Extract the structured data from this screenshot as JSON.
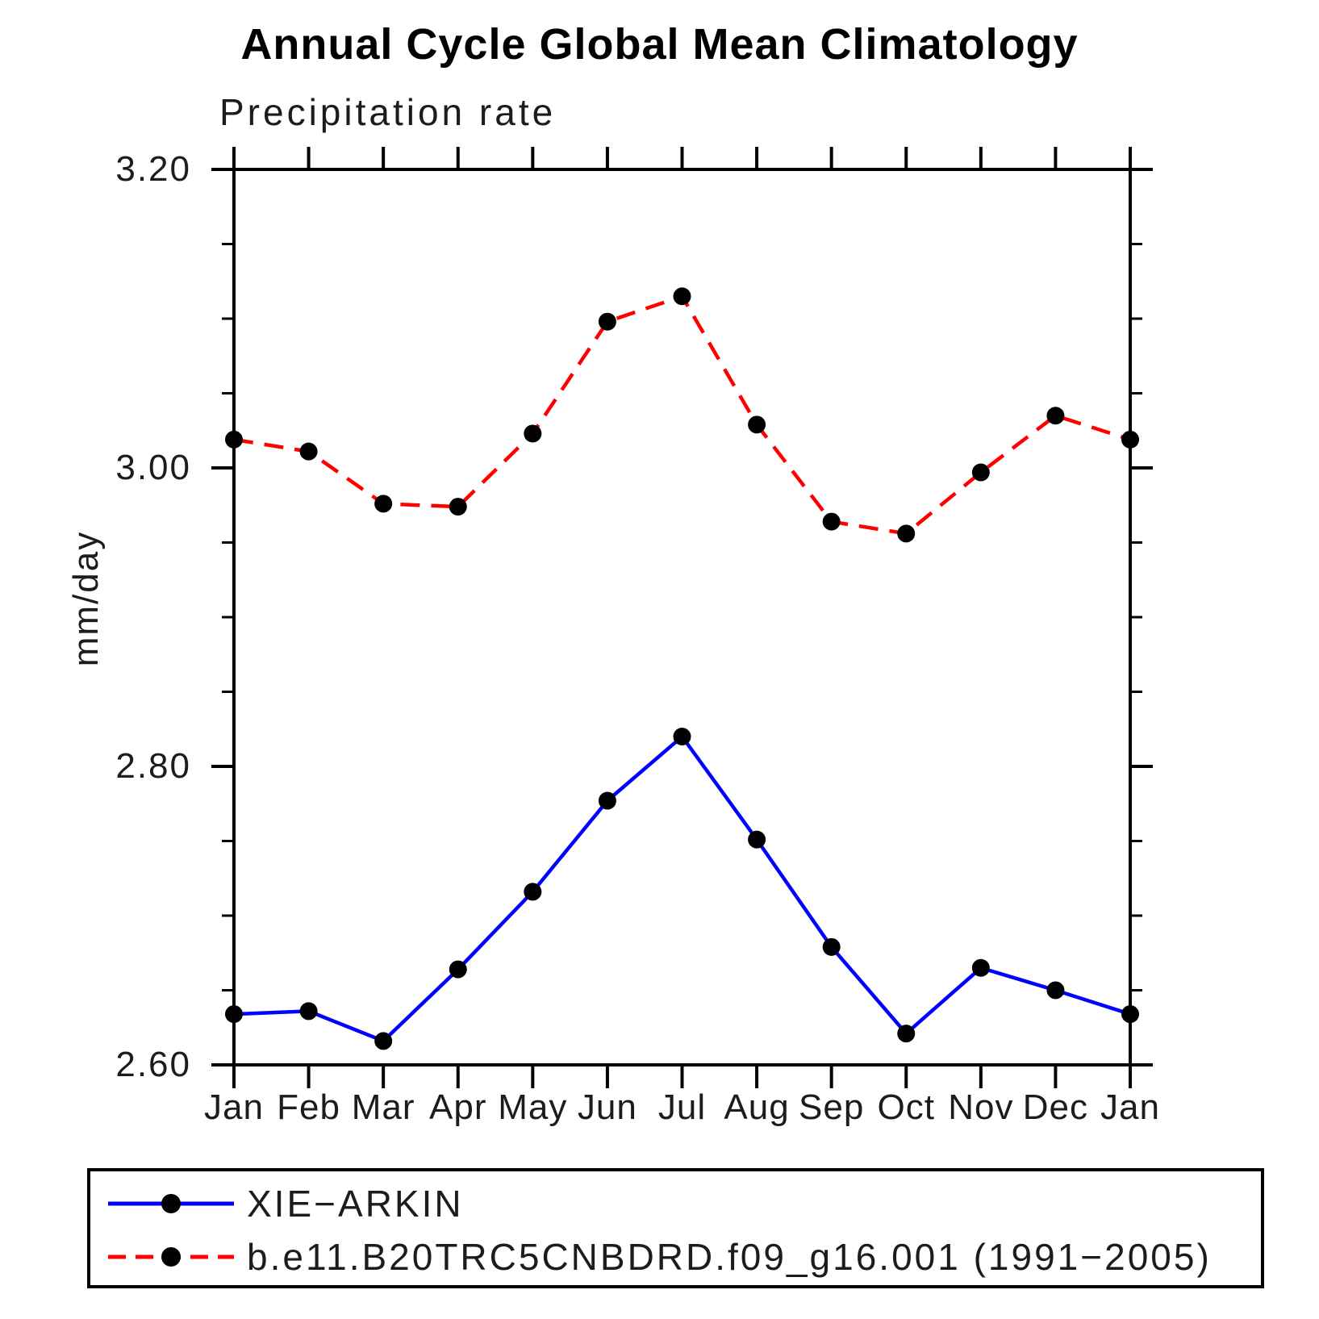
{
  "chart_data": {
    "type": "line",
    "title": "Annual Cycle Global Mean Climatology",
    "subtitle": "Precipitation rate",
    "ylabel": "mm/day",
    "categories": [
      "Jan",
      "Feb",
      "Mar",
      "Apr",
      "May",
      "Jun",
      "Jul",
      "Aug",
      "Sep",
      "Oct",
      "Nov",
      "Dec",
      "Jan"
    ],
    "series": [
      {
        "name": "XIE−ARKIN",
        "color": "#0000ff",
        "style": "solid",
        "marker": "filled-circle",
        "marker_color": "#000000",
        "values": [
          2.634,
          2.636,
          2.616,
          2.664,
          2.716,
          2.777,
          2.82,
          2.751,
          2.679,
          2.621,
          2.665,
          2.65,
          2.634
        ]
      },
      {
        "name": "b.e11.B20TRC5CNBDRD.f09_g16.001 (1991−2005)",
        "color": "#ff0000",
        "style": "dashed",
        "marker": "filled-circle",
        "marker_color": "#000000",
        "values": [
          3.019,
          3.011,
          2.976,
          2.974,
          3.023,
          3.098,
          3.115,
          3.029,
          2.964,
          2.956,
          2.997,
          3.035,
          3.019
        ]
      }
    ],
    "ylim": [
      2.6,
      3.2
    ],
    "ytick_major": [
      2.6,
      2.8,
      3.0,
      3.2
    ],
    "ytick_labels": [
      "2.60",
      "2.80",
      "3.00",
      "3.20"
    ],
    "ytick_minor_step": 0.05,
    "grid": false,
    "legend_position": "bottom",
    "axis_color": "#000000",
    "background_color": "#ffffff"
  }
}
